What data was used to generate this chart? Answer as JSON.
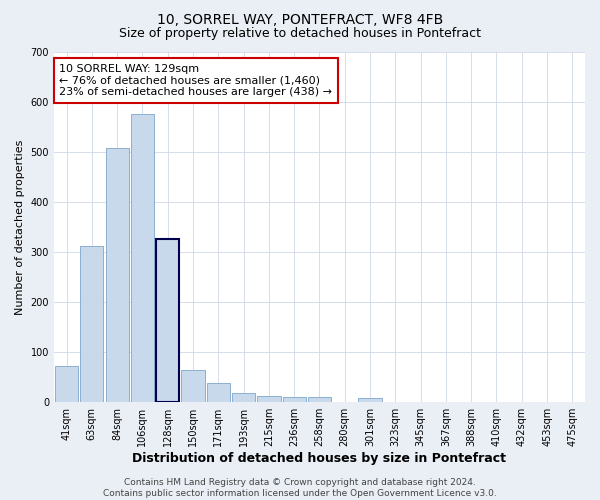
{
  "title1": "10, SORREL WAY, PONTEFRACT, WF8 4FB",
  "title2": "Size of property relative to detached houses in Pontefract",
  "xlabel": "Distribution of detached houses by size in Pontefract",
  "ylabel": "Number of detached properties",
  "categories": [
    "41sqm",
    "63sqm",
    "84sqm",
    "106sqm",
    "128sqm",
    "150sqm",
    "171sqm",
    "193sqm",
    "215sqm",
    "236sqm",
    "258sqm",
    "280sqm",
    "301sqm",
    "323sqm",
    "345sqm",
    "367sqm",
    "388sqm",
    "410sqm",
    "432sqm",
    "453sqm",
    "475sqm"
  ],
  "values": [
    72,
    312,
    507,
    575,
    325,
    65,
    38,
    18,
    13,
    10,
    10,
    0,
    8,
    0,
    0,
    0,
    0,
    0,
    0,
    0,
    0
  ],
  "bar_color": "#c8d9ec",
  "bar_edge_color": "#8ab0d0",
  "highlight_bar_index": 4,
  "highlight_bar_edge_color": "#00004d",
  "ylim": [
    0,
    700
  ],
  "yticks": [
    0,
    100,
    200,
    300,
    400,
    500,
    600,
    700
  ],
  "annotation_text": "10 SORREL WAY: 129sqm\n← 76% of detached houses are smaller (1,460)\n23% of semi-detached houses are larger (438) →",
  "annotation_box_facecolor": "#ffffff",
  "annotation_box_edgecolor": "#cc0000",
  "footer_text": "Contains HM Land Registry data © Crown copyright and database right 2024.\nContains public sector information licensed under the Open Government Licence v3.0.",
  "plot_bg_color": "#ffffff",
  "fig_bg_color": "#eaeef5",
  "grid_color": "#d0d8e8",
  "title1_fontsize": 10,
  "title2_fontsize": 9,
  "xlabel_fontsize": 9,
  "ylabel_fontsize": 8,
  "tick_fontsize": 7,
  "annotation_fontsize": 8,
  "footer_fontsize": 6.5
}
